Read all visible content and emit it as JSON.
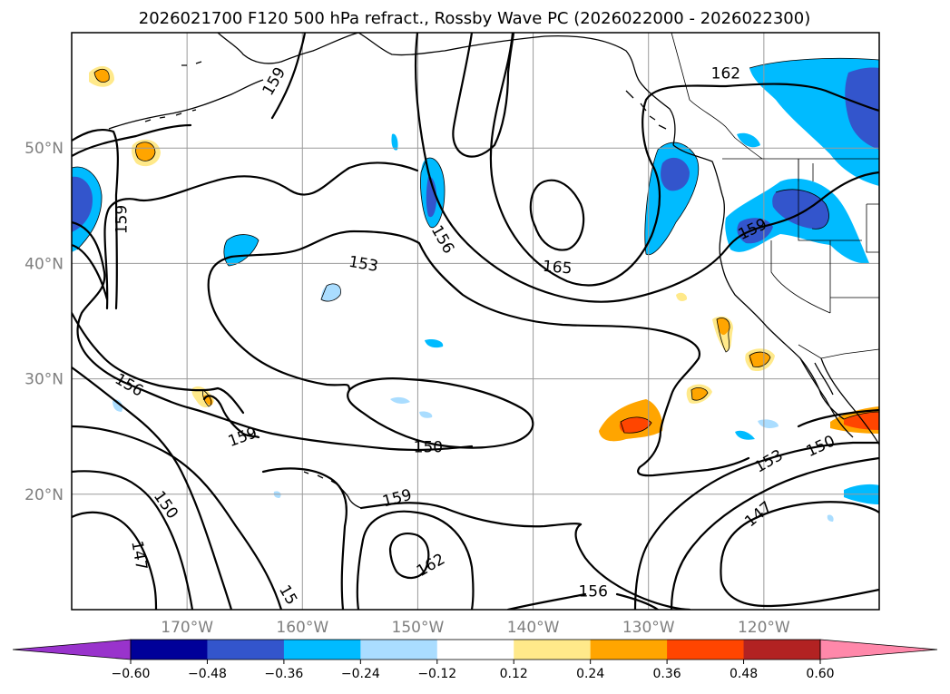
{
  "title": "2026021700 F120 500 hPa refract., Rossby Wave PC (2026022000 - 2026022300)",
  "map": {
    "lon_min": -180,
    "lon_max": -110,
    "lat_min": 10,
    "lat_max": 60,
    "lon_ticks": [
      {
        "value": -170,
        "label": "170°W"
      },
      {
        "value": -160,
        "label": "160°W"
      },
      {
        "value": -150,
        "label": "150°W"
      },
      {
        "value": -140,
        "label": "140°W"
      },
      {
        "value": -130,
        "label": "130°W"
      },
      {
        "value": -120,
        "label": "120°W"
      }
    ],
    "lat_ticks": [
      {
        "value": 20,
        "label": "20°N"
      },
      {
        "value": 30,
        "label": "30°N"
      },
      {
        "value": 40,
        "label": "40°N"
      },
      {
        "value": 50,
        "label": "50°N"
      }
    ],
    "grid": true
  },
  "colorbar": {
    "levels": [
      "−0.60",
      "−0.48",
      "−0.36",
      "−0.24",
      "−0.12",
      "0.12",
      "0.24",
      "0.36",
      "0.48",
      "0.60"
    ],
    "colors": [
      "#9933cc",
      "#000099",
      "#3355cc",
      "#00bbff",
      "#aaddff",
      "#ffffff",
      "#ffe98a",
      "#ffa500",
      "#ff4500",
      "#b22222",
      "#ff88aa"
    ],
    "extend": "both"
  },
  "contour_labels": [
    {
      "text": "159",
      "lon": -162.5,
      "lat": 55.8,
      "rot": -60
    },
    {
      "text": "162",
      "lon": -123.3,
      "lat": 56.5,
      "rot": 0
    },
    {
      "text": "159",
      "lon": -175.7,
      "lat": 43.8,
      "rot": -90
    },
    {
      "text": "153",
      "lon": -154.7,
      "lat": 40.0,
      "rot": 10
    },
    {
      "text": "156",
      "lon": -147.8,
      "lat": 42.1,
      "rot": 60
    },
    {
      "text": "165",
      "lon": -137.9,
      "lat": 39.7,
      "rot": 5
    },
    {
      "text": "159",
      "lon": -121.0,
      "lat": 43.0,
      "rot": -25
    },
    {
      "text": "156",
      "lon": -175.0,
      "lat": 29.5,
      "rot": 30
    },
    {
      "text": "159",
      "lon": -165.2,
      "lat": 25.0,
      "rot": -20
    },
    {
      "text": "150",
      "lon": -149.1,
      "lat": 24.1,
      "rot": 0
    },
    {
      "text": "153",
      "lon": -119.6,
      "lat": 22.9,
      "rot": -30
    },
    {
      "text": "150",
      "lon": -115.1,
      "lat": 24.2,
      "rot": -25
    },
    {
      "text": "159",
      "lon": -151.8,
      "lat": 19.7,
      "rot": -15
    },
    {
      "text": "150",
      "lon": -171.8,
      "lat": 19.1,
      "rot": 55
    },
    {
      "text": "147",
      "lon": -120.5,
      "lat": 18.3,
      "rot": -40
    },
    {
      "text": "147",
      "lon": -174.1,
      "lat": 14.7,
      "rot": 80
    },
    {
      "text": "162",
      "lon": -148.9,
      "lat": 13.9,
      "rot": -30
    },
    {
      "text": "156",
      "lon": -134.8,
      "lat": 11.6,
      "rot": 0
    },
    {
      "text": "15",
      "lon": -161.2,
      "lat": 11.3,
      "rot": 60
    }
  ]
}
